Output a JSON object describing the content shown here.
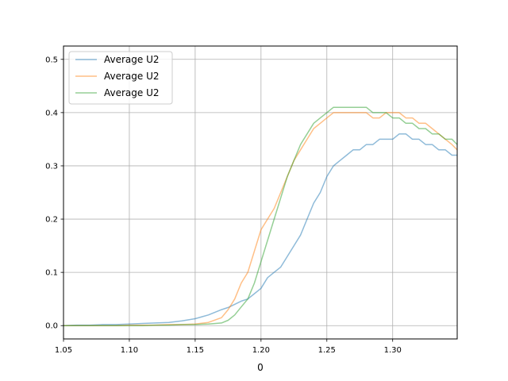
{
  "chart_data": {
    "type": "line",
    "title": "",
    "xlabel": "0",
    "ylabel": "",
    "xlim": [
      1.05,
      1.349
    ],
    "ylim": [
      -0.025,
      0.525
    ],
    "xticks": [
      {
        "value": 1.05,
        "label": "1.05"
      },
      {
        "value": 1.1,
        "label": "1.10"
      },
      {
        "value": 1.15,
        "label": "1.15"
      },
      {
        "value": 1.2,
        "label": "1.20"
      },
      {
        "value": 1.25,
        "label": "1.25"
      },
      {
        "value": 1.3,
        "label": "1.30"
      }
    ],
    "yticks": [
      {
        "value": 0.0,
        "label": "0.0"
      },
      {
        "value": 0.1,
        "label": "0.1"
      },
      {
        "value": 0.2,
        "label": "0.2"
      },
      {
        "value": 0.3,
        "label": "0.3"
      },
      {
        "value": 0.4,
        "label": "0.4"
      },
      {
        "value": 0.5,
        "label": "0.5"
      }
    ],
    "grid": true,
    "legend_position": "top-left",
    "x": [
      1.05,
      1.06,
      1.07,
      1.08,
      1.09,
      1.1,
      1.11,
      1.12,
      1.13,
      1.14,
      1.15,
      1.16,
      1.17,
      1.175,
      1.18,
      1.185,
      1.19,
      1.195,
      1.2,
      1.205,
      1.21,
      1.215,
      1.22,
      1.225,
      1.23,
      1.235,
      1.24,
      1.245,
      1.25,
      1.255,
      1.26,
      1.265,
      1.27,
      1.275,
      1.28,
      1.285,
      1.29,
      1.295,
      1.3,
      1.305,
      1.31,
      1.315,
      1.32,
      1.325,
      1.33,
      1.335,
      1.34,
      1.345,
      1.349
    ],
    "series": [
      {
        "name": "Average U2",
        "color": "#1f77b4",
        "values": [
          0.0,
          0.001,
          0.001,
          0.002,
          0.002,
          0.003,
          0.004,
          0.005,
          0.006,
          0.009,
          0.013,
          0.02,
          0.03,
          0.034,
          0.04,
          0.046,
          0.05,
          0.06,
          0.07,
          0.09,
          0.1,
          0.11,
          0.13,
          0.15,
          0.17,
          0.2,
          0.23,
          0.25,
          0.28,
          0.3,
          0.31,
          0.32,
          0.33,
          0.33,
          0.34,
          0.34,
          0.35,
          0.35,
          0.35,
          0.36,
          0.36,
          0.35,
          0.35,
          0.34,
          0.34,
          0.33,
          0.33,
          0.32,
          0.32
        ]
      },
      {
        "name": "Average U2",
        "color": "#ff7f0e",
        "values": [
          0.0,
          0.0,
          0.0,
          0.0,
          0.0,
          0.001,
          0.001,
          0.001,
          0.002,
          0.002,
          0.003,
          0.006,
          0.015,
          0.03,
          0.05,
          0.08,
          0.1,
          0.14,
          0.18,
          0.2,
          0.22,
          0.25,
          0.28,
          0.31,
          0.33,
          0.35,
          0.37,
          0.38,
          0.39,
          0.4,
          0.4,
          0.4,
          0.4,
          0.4,
          0.4,
          0.39,
          0.39,
          0.4,
          0.4,
          0.4,
          0.39,
          0.39,
          0.38,
          0.38,
          0.37,
          0.36,
          0.35,
          0.34,
          0.33
        ]
      },
      {
        "name": "Average U2",
        "color": "#2ca02c",
        "values": [
          0.0,
          0.0,
          0.0,
          0.0,
          0.0,
          0.0,
          0.0,
          0.001,
          0.001,
          0.002,
          0.002,
          0.003,
          0.005,
          0.01,
          0.02,
          0.035,
          0.05,
          0.08,
          0.12,
          0.16,
          0.2,
          0.24,
          0.28,
          0.31,
          0.34,
          0.36,
          0.38,
          0.39,
          0.4,
          0.41,
          0.41,
          0.41,
          0.41,
          0.41,
          0.41,
          0.4,
          0.4,
          0.4,
          0.39,
          0.39,
          0.38,
          0.38,
          0.37,
          0.37,
          0.36,
          0.36,
          0.35,
          0.35,
          0.34
        ]
      }
    ]
  }
}
